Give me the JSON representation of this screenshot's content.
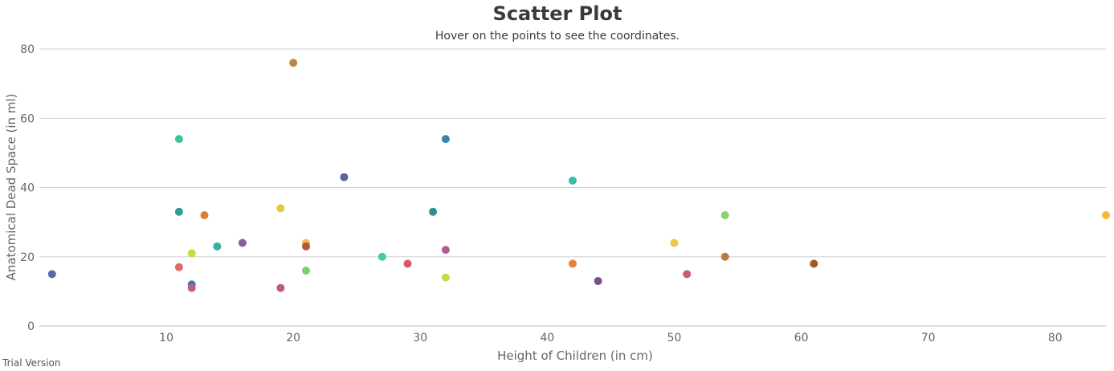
{
  "chart_data": {
    "type": "scatter",
    "title": "Scatter Plot",
    "subtitle": "Hover on the points to see the coordinates.",
    "xlabel": "Height of Children (in cm)",
    "ylabel": "Anatomical Dead Space (in ml)",
    "xlim": [
      0,
      84
    ],
    "ylim": [
      0,
      80
    ],
    "x_ticks": [
      10,
      20,
      30,
      40,
      50,
      60,
      70,
      80
    ],
    "y_ticks": [
      0,
      20,
      40,
      60,
      80
    ],
    "grid": "horizontal",
    "legend": "none",
    "points": [
      {
        "x": 1,
        "y": 15,
        "color": "#5b6aa6"
      },
      {
        "x": 11,
        "y": 54,
        "color": "#3cc3a0"
      },
      {
        "x": 11,
        "y": 33,
        "color": "#2e9b98"
      },
      {
        "x": 11,
        "y": 17,
        "color": "#de6a6f"
      },
      {
        "x": 12,
        "y": 21,
        "color": "#cfd83e"
      },
      {
        "x": 12,
        "y": 12,
        "color": "#3a79a6"
      },
      {
        "x": 12,
        "y": 11,
        "color": "#c45a83"
      },
      {
        "x": 13,
        "y": 32,
        "color": "#e07a3a"
      },
      {
        "x": 14,
        "y": 23,
        "color": "#35b3a0"
      },
      {
        "x": 16,
        "y": 24,
        "color": "#8a5c98"
      },
      {
        "x": 19,
        "y": 34,
        "color": "#e3c83a"
      },
      {
        "x": 19,
        "y": 11,
        "color": "#c05a78"
      },
      {
        "x": 20,
        "y": 76,
        "color": "#b98845"
      },
      {
        "x": 21,
        "y": 24,
        "color": "#f5b955"
      },
      {
        "x": 21,
        "y": 23,
        "color": "#b3553a"
      },
      {
        "x": 21,
        "y": 16,
        "color": "#7ccf70"
      },
      {
        "x": 24,
        "y": 43,
        "color": "#5b62a0"
      },
      {
        "x": 27,
        "y": 20,
        "color": "#3cd0a0"
      },
      {
        "x": 29,
        "y": 18,
        "color": "#d65a63"
      },
      {
        "x": 31,
        "y": 33,
        "color": "#2e9090"
      },
      {
        "x": 32,
        "y": 54,
        "color": "#3a85b0"
      },
      {
        "x": 32,
        "y": 22,
        "color": "#b45a98"
      },
      {
        "x": 32,
        "y": 14,
        "color": "#c6d845"
      },
      {
        "x": 42,
        "y": 42,
        "color": "#35c0a8"
      },
      {
        "x": 42,
        "y": 18,
        "color": "#e98038"
      },
      {
        "x": 44,
        "y": 13,
        "color": "#7a4e90"
      },
      {
        "x": 50,
        "y": 24,
        "color": "#e8c84a"
      },
      {
        "x": 51,
        "y": 15,
        "color": "#cc5a6a"
      },
      {
        "x": 54,
        "y": 32,
        "color": "#88d66a"
      },
      {
        "x": 54,
        "y": 20,
        "color": "#bb7a3a"
      },
      {
        "x": 61,
        "y": 18,
        "color": "#9e5a2a"
      },
      {
        "x": 84,
        "y": 32,
        "color": "#f5b73a"
      }
    ]
  },
  "footer": {
    "watermark": "Trial Version"
  }
}
